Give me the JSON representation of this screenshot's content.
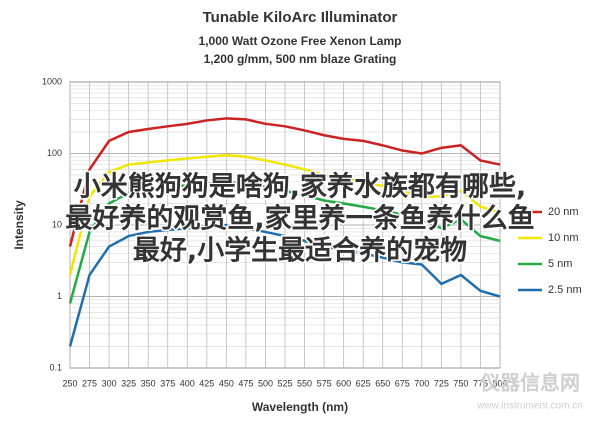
{
  "chart_data": {
    "type": "line",
    "title": "Tunable KiloArc Illuminator",
    "subtitle": [
      "1,000 Watt Ozone Free Xenon Lamp",
      "1,200 g/mm, 500 nm blaze Grating"
    ],
    "x_label": "Wavelength (nm)",
    "y_label": "Intensity",
    "x": [
      250,
      275,
      300,
      325,
      350,
      375,
      400,
      425,
      450,
      475,
      500,
      525,
      550,
      575,
      600,
      625,
      650,
      675,
      700,
      725,
      750,
      775,
      800
    ],
    "series": [
      {
        "name": "20 nm",
        "color": "#cc2222",
        "values": [
          5,
          60,
          150,
          200,
          220,
          240,
          260,
          290,
          310,
          300,
          260,
          240,
          210,
          180,
          160,
          150,
          130,
          110,
          100,
          120,
          130,
          80,
          70
        ]
      },
      {
        "name": "10 nm",
        "color": "#f2e600",
        "values": [
          2,
          25,
          55,
          70,
          75,
          80,
          85,
          90,
          95,
          90,
          80,
          70,
          60,
          50,
          45,
          40,
          35,
          30,
          25,
          25,
          30,
          18,
          15
        ]
      },
      {
        "name": "5 nm",
        "color": "#22aa44",
        "values": [
          0.8,
          8,
          20,
          28,
          32,
          34,
          36,
          38,
          40,
          38,
          34,
          30,
          26,
          22,
          20,
          18,
          16,
          14,
          12,
          9,
          12,
          7,
          6
        ]
      },
      {
        "name": "2.5 nm",
        "color": "#1f6fb0",
        "values": [
          0.2,
          2,
          5,
          7,
          8,
          8.5,
          9,
          9.5,
          10,
          9,
          8,
          7,
          6,
          5,
          4.5,
          4,
          3.5,
          3,
          2.8,
          1.5,
          2,
          1.2,
          1
        ]
      }
    ],
    "xlim": [
      250,
      800
    ],
    "xticks": [
      250,
      275,
      300,
      325,
      350,
      375,
      400,
      425,
      450,
      475,
      500,
      525,
      550,
      575,
      600,
      625,
      650,
      675,
      700,
      725,
      750,
      775,
      800
    ],
    "ylim": [
      0.1,
      1000
    ],
    "yticks": [
      0.1,
      1,
      10,
      100,
      1000
    ],
    "log_y": true,
    "grid": true,
    "minor_grid": true,
    "legend": "right",
    "overlay_text": [
      "小米熊狗狗是啥狗,家养水族都有哪些,",
      "最好养的观赏鱼,家里养一条鱼养什么鱼",
      "最好,小学生最适合养的宠物"
    ],
    "watermark": [
      "仪器信息网",
      "www.instrument.com.cn"
    ]
  }
}
